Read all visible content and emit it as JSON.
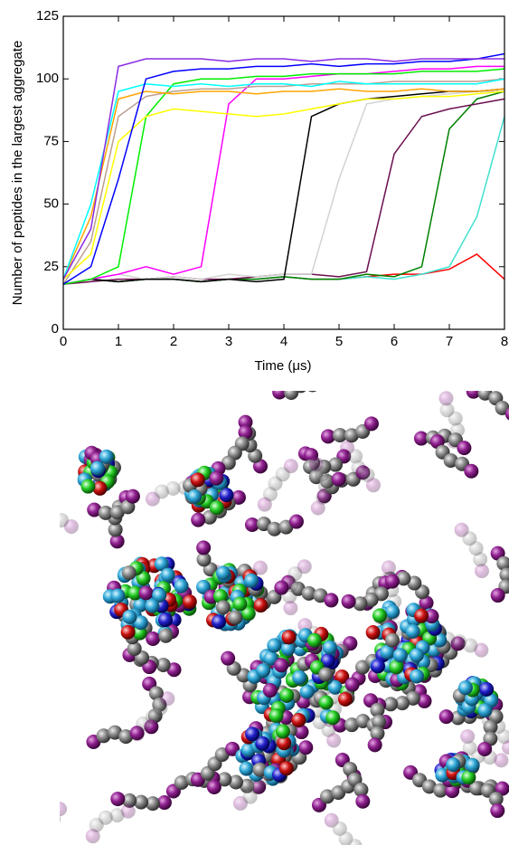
{
  "chart_data": {
    "type": "line",
    "x_label": "Time (μs)",
    "y_label": "Number of peptides in the largest aggregate",
    "x": [
      0,
      0.5,
      1,
      1.5,
      2,
      2.5,
      3,
      3.5,
      4,
      4.5,
      5,
      5.5,
      6,
      6.5,
      7,
      7.5,
      8
    ],
    "xlim": [
      0,
      8
    ],
    "xticks": [
      0,
      1,
      2,
      3,
      4,
      5,
      6,
      7,
      8
    ],
    "ylim": [
      0,
      125
    ],
    "yticks": [
      0,
      25,
      50,
      75,
      100,
      125
    ],
    "grid": false,
    "series": [
      {
        "color": "#ff0000",
        "values": [
          18,
          20,
          19,
          20,
          20,
          19,
          20,
          20,
          21,
          20,
          20,
          21,
          22,
          22,
          24,
          30,
          20
        ]
      },
      {
        "color": "#40e0d0",
        "values": [
          18,
          20,
          19,
          20,
          20,
          19,
          20,
          20,
          21,
          20,
          20,
          21,
          20,
          22,
          25,
          45,
          85
        ]
      },
      {
        "color": "#008000",
        "values": [
          18,
          20,
          19,
          20,
          20,
          19,
          20,
          20,
          21,
          20,
          20,
          22,
          21,
          25,
          80,
          92,
          95
        ]
      },
      {
        "color": "#6b0f4f",
        "values": [
          18,
          19,
          20,
          20,
          21,
          20,
          20,
          21,
          22,
          22,
          21,
          23,
          70,
          85,
          88,
          90,
          92
        ]
      },
      {
        "color": "#d3d3d3",
        "values": [
          18,
          20,
          22,
          20,
          21,
          20,
          22,
          21,
          22,
          22,
          60,
          90,
          92,
          93,
          94,
          95,
          95
        ]
      },
      {
        "color": "#000000",
        "values": [
          18,
          20,
          19,
          20,
          20,
          19,
          20,
          19,
          20,
          85,
          90,
          92,
          93,
          94,
          95,
          95,
          96
        ]
      },
      {
        "color": "#ff00ff",
        "values": [
          18,
          20,
          22,
          25,
          22,
          25,
          90,
          100,
          100,
          101,
          102,
          102,
          103,
          104,
          104,
          105,
          105
        ]
      },
      {
        "color": "#00ee00",
        "values": [
          18,
          20,
          25,
          85,
          98,
          100,
          100,
          101,
          101,
          102,
          102,
          102,
          102,
          103,
          103,
          103,
          104
        ]
      },
      {
        "color": "#bc9f8f",
        "values": [
          18,
          35,
          85,
          93,
          95,
          96,
          96,
          97,
          97,
          98,
          98,
          98,
          99,
          99,
          99,
          99,
          100
        ]
      },
      {
        "color": "#ffff00",
        "values": [
          20,
          30,
          75,
          85,
          88,
          87,
          86,
          85,
          86,
          88,
          90,
          92,
          92,
          93,
          93,
          94,
          95
        ]
      },
      {
        "color": "#ffa500",
        "values": [
          20,
          45,
          92,
          95,
          94,
          95,
          95,
          94,
          95,
          95,
          96,
          95,
          95,
          96,
          95,
          95,
          96
        ]
      },
      {
        "color": "#00ffff",
        "values": [
          20,
          50,
          95,
          98,
          97,
          98,
          97,
          98,
          98,
          97,
          99,
          98,
          98,
          98,
          98,
          98,
          100
        ]
      },
      {
        "color": "#0000ff",
        "values": [
          18,
          25,
          60,
          100,
          103,
          104,
          104,
          105,
          105,
          106,
          105,
          106,
          106,
          107,
          107,
          108,
          110
        ]
      },
      {
        "color": "#8a2be2",
        "values": [
          20,
          40,
          105,
          108,
          108,
          108,
          107,
          108,
          108,
          107,
          108,
          108,
          107,
          108,
          108,
          108,
          108
        ]
      }
    ]
  }
}
